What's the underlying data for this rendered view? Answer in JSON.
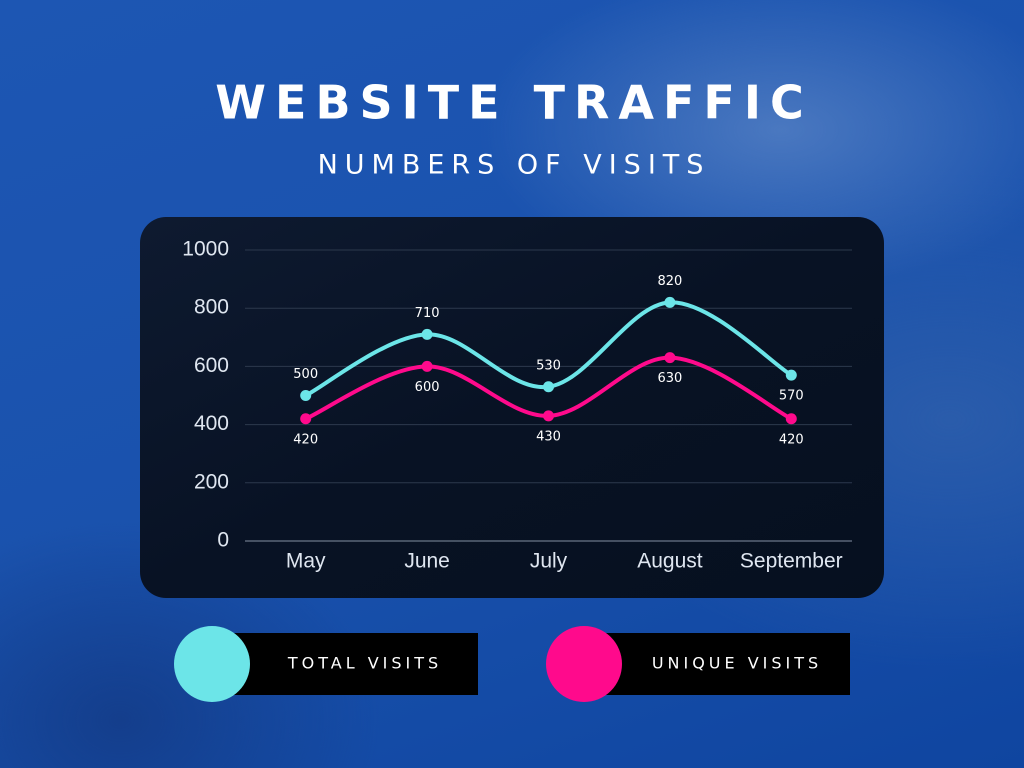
{
  "chart_data": {
    "type": "line",
    "title": "WEBSITE TRAFFIC",
    "subtitle": "NUMBERS OF VISITS",
    "categories": [
      "May",
      "June",
      "July",
      "August",
      "September"
    ],
    "series": [
      {
        "name": "TOTAL VISITS",
        "color": "#6ce5e8",
        "values": [
          500,
          710,
          530,
          820,
          570
        ]
      },
      {
        "name": "UNIQUE VISITS",
        "color": "#ff0a8c",
        "values": [
          420,
          600,
          430,
          630,
          420
        ]
      }
    ],
    "ylim": [
      0,
      1000
    ],
    "yticks": [
      0,
      200,
      400,
      600,
      800,
      1000
    ],
    "grid": true
  }
}
